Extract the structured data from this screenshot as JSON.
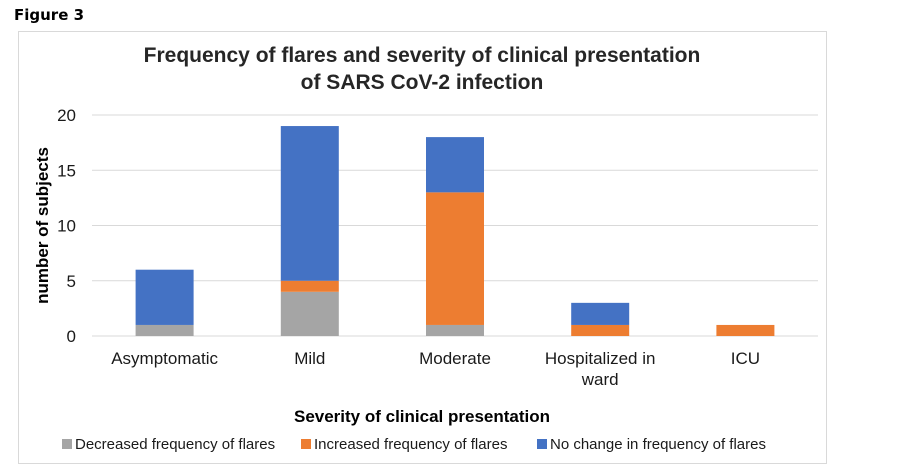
{
  "figure_label": "Figure 3",
  "chart_data": {
    "type": "bar",
    "stacked": true,
    "title_lines": [
      "Frequency of flares and severity of clinical presentation",
      "of SARS CoV-2 infection"
    ],
    "xlabel": "Severity of clinical presentation",
    "ylabel": "number of subjects",
    "categories": [
      "Asymptomatic",
      "Mild",
      "Moderate",
      "Hospitalized in ward",
      "ICU"
    ],
    "category_lines": [
      [
        "Asymptomatic"
      ],
      [
        "Mild"
      ],
      [
        "Moderate"
      ],
      [
        "Hospitalized in",
        "ward"
      ],
      [
        "ICU"
      ]
    ],
    "ylim": [
      0,
      20
    ],
    "yticks": [
      0,
      5,
      10,
      15,
      20
    ],
    "grid": true,
    "legend_position": "bottom",
    "series": [
      {
        "name": "Decreased frequency of flares",
        "color": "#a5a5a5",
        "values": [
          1,
          4,
          1,
          0,
          0
        ]
      },
      {
        "name": "Increased frequency of flares",
        "color": "#ed7d31",
        "values": [
          0,
          1,
          12,
          1,
          1
        ]
      },
      {
        "name": "No change in frequency of flares",
        "color": "#4472c4",
        "values": [
          5,
          14,
          5,
          2,
          0
        ]
      }
    ]
  }
}
